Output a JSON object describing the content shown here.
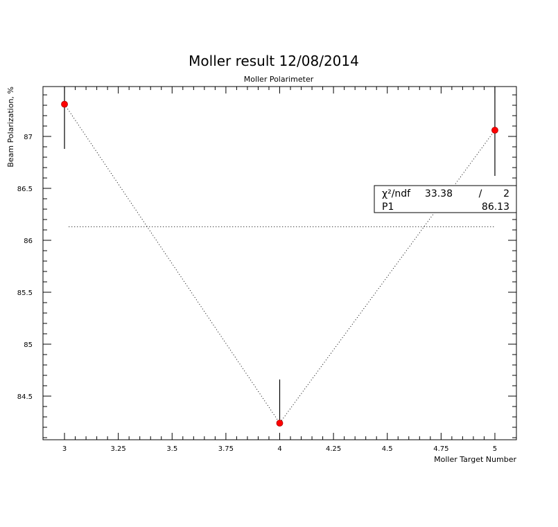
{
  "title": "Moller result 12/08/2014",
  "chart_data": {
    "type": "scatter",
    "title": "Moller Polarimeter",
    "xlabel": "Moller Target Number",
    "ylabel": "Beam Polarization, %",
    "xlim": [
      2.9,
      5.1
    ],
    "ylim": [
      84.08,
      87.48
    ],
    "x_ticks": [
      "3",
      "3.25",
      "3.5",
      "3.75",
      "4",
      "4.25",
      "4.5",
      "4.75",
      "5"
    ],
    "y_ticks": [
      "84.5",
      "85",
      "85.5",
      "86",
      "86.5",
      "87"
    ],
    "series": [
      {
        "x": [
          3,
          4,
          5
        ],
        "y": [
          87.31,
          84.24,
          87.06
        ],
        "yerr_low": [
          86.88,
          84.24,
          86.62
        ],
        "yerr_high": [
          87.48,
          84.66,
          87.48
        ],
        "marker_color": "#ff0000",
        "connect": "dotted"
      }
    ],
    "fit_line": {
      "x_start": 3.02,
      "x_end": 5.0,
      "value": 86.13
    },
    "stats_box": {
      "rows": [
        {
          "label": "χ²/ndf",
          "value": "33.38",
          "sep": "/",
          "ndf": "2"
        },
        {
          "label": "P1",
          "value": "86.13"
        }
      ]
    },
    "grid": false
  }
}
